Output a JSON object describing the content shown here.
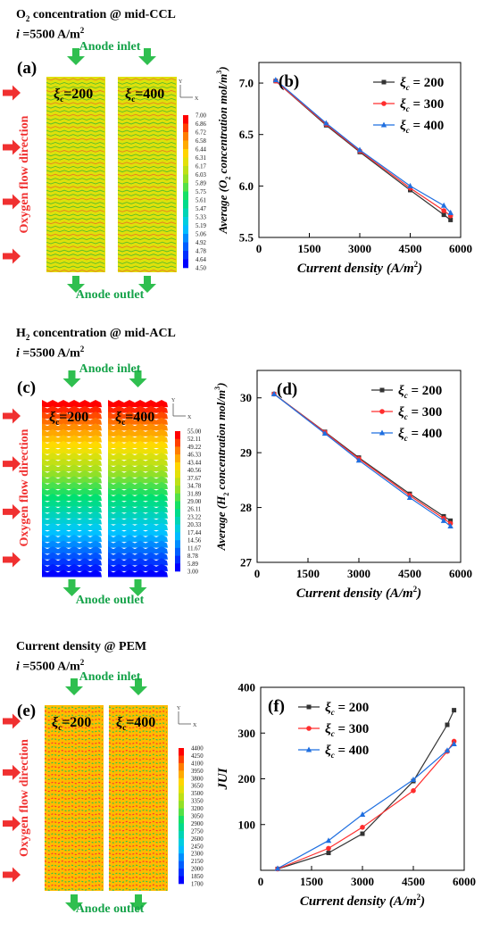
{
  "sections": [
    {
      "header": {
        "line1": {
          "sym": "O",
          "sub": "2",
          "text": " concentration @ mid-CCL"
        },
        "line2": {
          "var": "i",
          "text": " =5500 A/m",
          "sup": "2"
        }
      },
      "field": {
        "letter": "(a)",
        "inlet": "Anode inlet",
        "outlet": "Anode outlet",
        "flow_label": "Oxygen flow direction",
        "lanes": [
          {
            "sym": "ξ",
            "sub": "c",
            "text": "=200"
          },
          {
            "sym": "ξ",
            "sub": "c",
            "text": "=400"
          }
        ],
        "axes": {
          "x": "X",
          "y": "Y"
        },
        "style": "wavy-stripes",
        "colorbar": {
          "ticks": [
            "7.00",
            "6.86",
            "6.72",
            "6.58",
            "6.44",
            "6.31",
            "6.17",
            "6.03",
            "5.89",
            "5.75",
            "5.61",
            "5.47",
            "5.33",
            "5.19",
            "5.06",
            "4.92",
            "4.78",
            "4.64",
            "4.50"
          ]
        },
        "dominant_level": 0.7
      },
      "chart_data": {
        "type": "line",
        "letter": "(b)",
        "xlabel": "Current density (A/m²)",
        "ylabel": "Average (O₂ concentration mol/m³)",
        "xlim": [
          0,
          6000
        ],
        "ylim": [
          5.5,
          7.2
        ],
        "xticks": [
          0,
          1500,
          3000,
          4500,
          6000
        ],
        "yticks": [
          5.5,
          6.0,
          6.5,
          7.0
        ],
        "yticklabels": [
          "5.5",
          "6.0",
          "6.5",
          "7.0"
        ],
        "x": [
          500,
          2000,
          3000,
          4500,
          5500,
          5700
        ],
        "legend_position": "top-right",
        "series": [
          {
            "name": "ξc = 200",
            "color": "#333333",
            "marker": "square",
            "values": [
              7.02,
              6.59,
              6.33,
              5.96,
              5.72,
              5.67
            ]
          },
          {
            "name": "ξc = 300",
            "color": "#ff2d2d",
            "marker": "circle",
            "values": [
              7.02,
              6.6,
              6.34,
              5.98,
              5.76,
              5.71
            ]
          },
          {
            "name": "ξc = 400",
            "color": "#1f6fe0",
            "marker": "triangle",
            "values": [
              7.03,
              6.61,
              6.35,
              6.0,
              5.81,
              5.74
            ]
          }
        ]
      }
    },
    {
      "header": {
        "line1": {
          "sym": "H",
          "sub": "2",
          "text": " concentration @ mid-ACL"
        },
        "line2": {
          "var": "i",
          "text": " =5500 A/m",
          "sup": "2"
        }
      },
      "field": {
        "letter": "(c)",
        "inlet": "Anode inlet",
        "outlet": "Anode outlet",
        "flow_label": "Oxygen flow direction",
        "lanes": [
          {
            "sym": "ξ",
            "sub": "c",
            "text": "=200"
          },
          {
            "sym": "ξ",
            "sub": "c",
            "text": "=400"
          }
        ],
        "axes": {
          "x": "X",
          "y": "Y"
        },
        "style": "vertical-gradient",
        "colorbar": {
          "ticks": [
            "55.00",
            "52.11",
            "49.22",
            "46.33",
            "43.44",
            "40.56",
            "37.67",
            "34.78",
            "31.89",
            "29.00",
            "26.11",
            "23.22",
            "20.33",
            "17.44",
            "14.56",
            "11.67",
            "8.78",
            "5.89",
            "3.00"
          ]
        }
      },
      "chart_data": {
        "type": "line",
        "letter": "(d)",
        "xlabel": "Current density (A/m²)",
        "ylabel": "Average (H₂ concentration mol/m³)",
        "xlim": [
          0,
          6000
        ],
        "ylim": [
          27,
          30.5
        ],
        "xticks": [
          0,
          1500,
          3000,
          4500,
          6000
        ],
        "yticks": [
          27,
          28,
          29,
          30
        ],
        "yticklabels": [
          "27",
          "28",
          "29",
          "30"
        ],
        "x": [
          500,
          2000,
          3000,
          4500,
          5500,
          5700
        ],
        "legend_position": "top-right",
        "series": [
          {
            "name": "ξc = 200",
            "color": "#333333",
            "marker": "square",
            "values": [
              30.07,
              29.38,
              28.91,
              28.25,
              27.84,
              27.76
            ]
          },
          {
            "name": "ξc = 300",
            "color": "#ff2d2d",
            "marker": "circle",
            "values": [
              30.07,
              29.37,
              28.89,
              28.22,
              27.8,
              27.71
            ]
          },
          {
            "name": "ξc = 400",
            "color": "#1f6fe0",
            "marker": "triangle",
            "values": [
              30.07,
              29.35,
              28.86,
              28.18,
              27.76,
              27.66
            ]
          }
        ]
      }
    },
    {
      "header": {
        "line1": {
          "text": "Current density @ PEM"
        },
        "line2": {
          "var": "i",
          "text": " =5500 A/m",
          "sup": "2"
        }
      },
      "field": {
        "letter": "(e)",
        "inlet": "Anode inlet",
        "outlet": "Anode outlet",
        "flow_label": "Oxygen flow direction",
        "lanes": [
          {
            "sym": "ξ",
            "sub": "c",
            "text": "=200"
          },
          {
            "sym": "ξ",
            "sub": "c",
            "text": "=400"
          }
        ],
        "axes": {
          "x": "X",
          "y": "Y"
        },
        "style": "dotted-stripes",
        "colorbar": {
          "ticks": [
            "4400",
            "4250",
            "4100",
            "3950",
            "3800",
            "3650",
            "3500",
            "3350",
            "3200",
            "3050",
            "2900",
            "2750",
            "2600",
            "2450",
            "2300",
            "2150",
            "2000",
            "1850",
            "1700"
          ]
        },
        "dominant_level": 0.8
      },
      "chart_data": {
        "type": "line",
        "letter": "(f)",
        "xlabel": "Current density (A/m²)",
        "ylabel": "JUI",
        "xlim": [
          0,
          6000
        ],
        "ylim": [
          0,
          400
        ],
        "xticks": [
          0,
          1500,
          3000,
          4500,
          6000
        ],
        "yticks": [
          100,
          200,
          300,
          400
        ],
        "yticklabels": [
          "100",
          "200",
          "300",
          "400"
        ],
        "x": [
          500,
          2000,
          3000,
          4500,
          5500,
          5700
        ],
        "legend_position": "top-left",
        "series": [
          {
            "name": "ξc = 200",
            "color": "#333333",
            "marker": "square",
            "values": [
              3,
              38,
              80,
              195,
              318,
              350
            ]
          },
          {
            "name": "ξc = 300",
            "color": "#ff2d2d",
            "marker": "circle",
            "values": [
              3,
              48,
              94,
              174,
              260,
              282
            ]
          },
          {
            "name": "ξc = 400",
            "color": "#1f6fe0",
            "marker": "triangle",
            "values": [
              4,
              65,
              122,
              198,
              262,
              276
            ]
          }
        ]
      }
    }
  ]
}
